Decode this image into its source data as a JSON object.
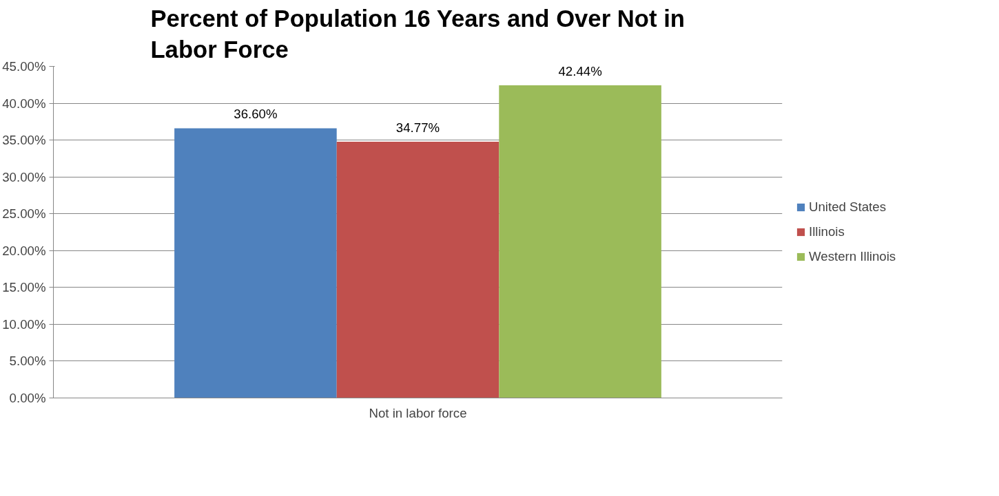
{
  "chart_data": {
    "type": "bar",
    "title": "Percent of Population 16 Years and Over Not in Labor Force",
    "categories": [
      "Not in labor force"
    ],
    "series": [
      {
        "name": "United States",
        "color": "#4f81bd",
        "values": [
          36.6
        ],
        "value_labels": [
          "36.60%"
        ]
      },
      {
        "name": "Illinois",
        "color": "#c0504d",
        "values": [
          34.77
        ],
        "value_labels": [
          "34.77%"
        ]
      },
      {
        "name": "Western Illinois",
        "color": "#9bbb59",
        "values": [
          42.44
        ],
        "value_labels": [
          "42.44%"
        ]
      }
    ],
    "ylim": [
      0,
      45
    ],
    "yticks": [
      {
        "value": 0,
        "label": "0.00%"
      },
      {
        "value": 5,
        "label": "5.00%"
      },
      {
        "value": 10,
        "label": "10.00%"
      },
      {
        "value": 15,
        "label": "15.00%"
      },
      {
        "value": 20,
        "label": "20.00%"
      },
      {
        "value": 25,
        "label": "25.00%"
      },
      {
        "value": 30,
        "label": "30.00%"
      },
      {
        "value": 35,
        "label": "35.00%"
      },
      {
        "value": 40,
        "label": "40.00%"
      },
      {
        "value": 45,
        "label": "45.00%"
      }
    ],
    "grid": "y",
    "legend": "right"
  }
}
